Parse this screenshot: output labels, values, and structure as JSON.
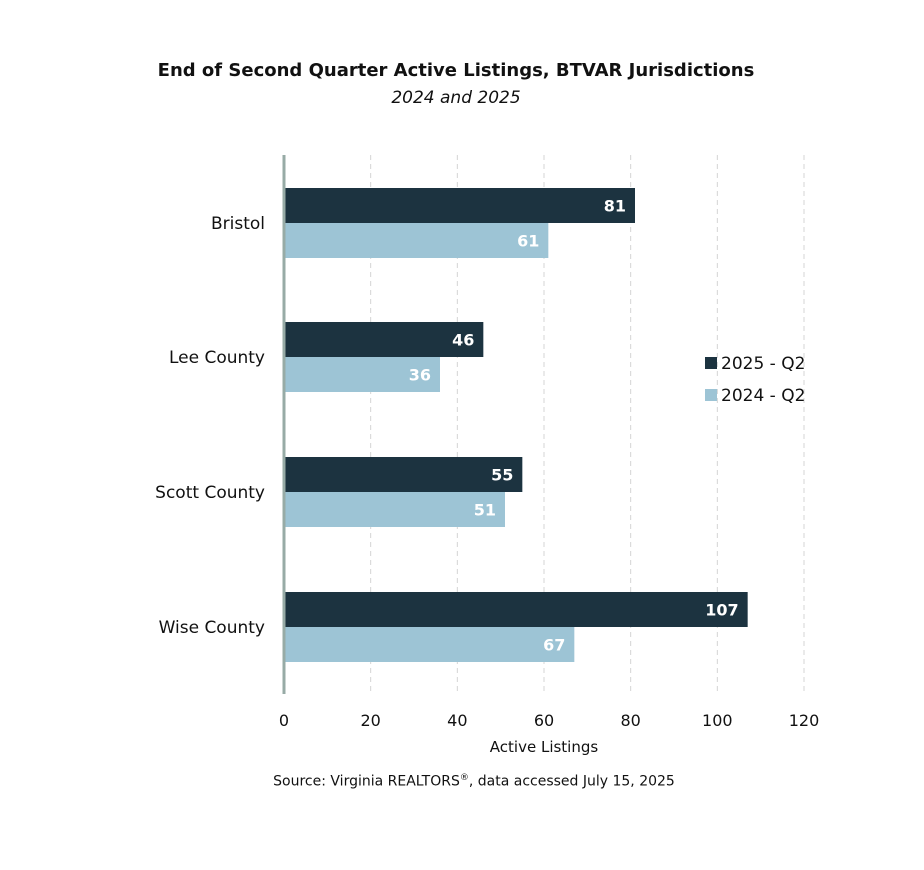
{
  "chart_data": {
    "type": "bar",
    "orientation": "horizontal",
    "title": "End of Second Quarter Active Listings, BTVAR Jurisdictions",
    "subtitle": "2024 and 2025",
    "xlabel": "Active Listings",
    "ylabel": "",
    "xlim": [
      0,
      120
    ],
    "xticks": [
      0,
      20,
      40,
      60,
      80,
      100,
      120
    ],
    "categories": [
      "Bristol",
      "Lee County",
      "Scott County",
      "Wise County"
    ],
    "series": [
      {
        "name": "2025 - Q2",
        "color": "#1c3340",
        "values": [
          81,
          46,
          55,
          107
        ]
      },
      {
        "name": "2024 - Q2",
        "color": "#9dc4d5",
        "values": [
          61,
          36,
          51,
          67
        ]
      }
    ],
    "grid": "vertical dashed",
    "legend_position": "right",
    "data_labels": true
  },
  "source": {
    "prefix": "Source: Virginia REALTORS",
    "mark": "®",
    "suffix": ", data accessed July 15, 2025"
  }
}
